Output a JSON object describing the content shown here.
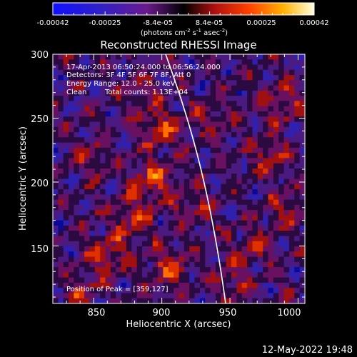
{
  "colorbar": {
    "ticks": [
      "-0.00042",
      "-0.00025",
      "-8.4e-05",
      "8.4e-05",
      "0.00025",
      "0.00042"
    ],
    "unit_pre": "(photons cm",
    "unit_exp1": "-2",
    "unit_mid1": " s",
    "unit_exp2": "-1",
    "unit_mid2": " asec",
    "unit_exp3": "-2",
    "unit_post": ")"
  },
  "plot": {
    "title": "Reconstructed RHESSI Image",
    "xlabel": "Heliocentric X (arcsec)",
    "ylabel": "Heliocentric Y (arcsec)",
    "xticks": [
      "850",
      "900",
      "950",
      "1000"
    ],
    "yticks": [
      "150",
      "200",
      "250",
      "300"
    ],
    "xrange": [
      820,
      1005
    ],
    "yrange": [
      105,
      300
    ]
  },
  "annotations": {
    "line1": "17-Apr-2013 06:50:24.000 to 06:56:24.000",
    "line2": "Detectors: 3F 4F 5F 6F 7F 8F, Att 0",
    "line3": "Energy Range: 12.0 - 25.0 keV",
    "line4_a": "Clean",
    "line4_b": "Total counts: 1.13E+04",
    "peak": "Position of Peak = [359,127]"
  },
  "footer": {
    "timestamp": "12-May-2022 19:48"
  }
}
